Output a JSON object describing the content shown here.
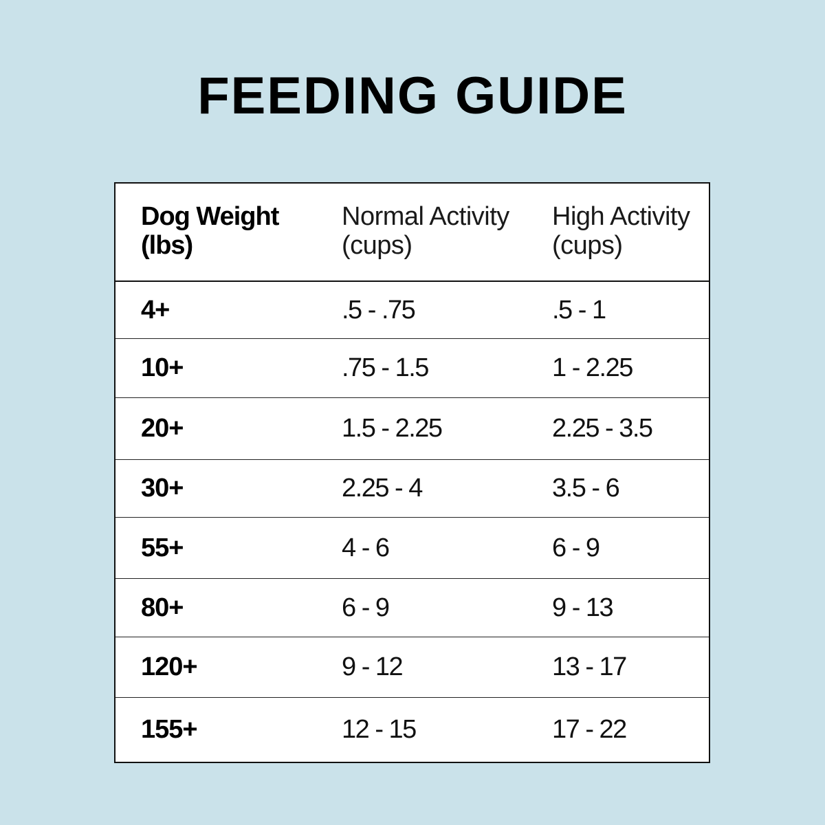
{
  "title": "FEEDING GUIDE",
  "table": {
    "headers": {
      "weight_line1": "Dog Weight",
      "weight_line2": "(lbs)",
      "normal_line1": "Normal Activity",
      "normal_line2": "(cups)",
      "high_line1": "High Activity",
      "high_line2": "(cups)"
    },
    "rows": [
      {
        "weight": "4+",
        "normal": ".5 - .75",
        "high": ".5 - 1"
      },
      {
        "weight": "10+",
        "normal": ".75 - 1.5",
        "high": "1 - 2.25"
      },
      {
        "weight": "20+",
        "normal": "1.5 - 2.25",
        "high": "2.25 - 3.5"
      },
      {
        "weight": "30+",
        "normal": "2.25 - 4",
        "high": "3.5 - 6"
      },
      {
        "weight": "55+",
        "normal": "4 - 6",
        "high": "6 - 9"
      },
      {
        "weight": "80+",
        "normal": "6 - 9",
        "high": "9 - 13"
      },
      {
        "weight": "120+",
        "normal": "9 - 12",
        "high": "13 - 17"
      },
      {
        "weight": "155+",
        "normal": "12 - 15",
        "high": "17 - 22"
      }
    ]
  }
}
